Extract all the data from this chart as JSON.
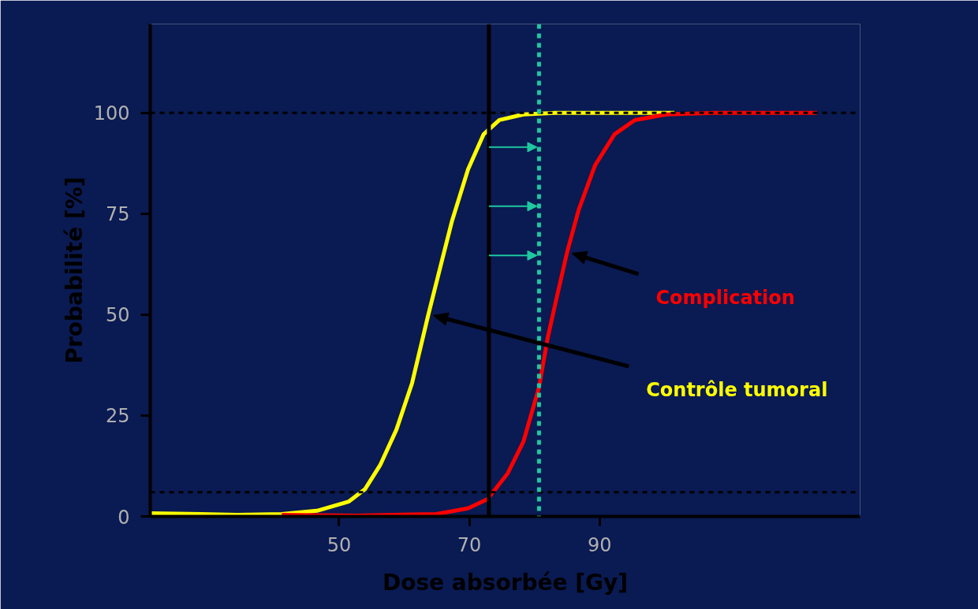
{
  "chart_data": {
    "type": "line",
    "xlabel": "Dose absorbée [Gy]",
    "ylabel": "Probabilité [%]",
    "xlim": [
      21,
      130
    ],
    "ylim": [
      0,
      122
    ],
    "xticks": [
      50,
      70,
      90
    ],
    "yticks": [
      0,
      25,
      50,
      75,
      100
    ],
    "grid": false,
    "legend": false,
    "marker": "none",
    "line_style": "solid",
    "series": [
      {
        "name": "Contrôle tumoral",
        "color": "#ffff00",
        "x": [
          21,
          34.4,
          41.2,
          46.6,
          51.5,
          54,
          56.3,
          58.8,
          61.2,
          63.7,
          65.5,
          67.3,
          69.8,
          72.2,
          74.6,
          78.3,
          83.2,
          101.5
        ],
        "values": [
          0.8,
          0.4,
          0.6,
          1.4,
          3.7,
          6.8,
          12.7,
          21.5,
          33,
          50,
          61.5,
          73,
          86,
          94.7,
          98.2,
          99.6,
          100,
          100
        ]
      },
      {
        "name": "Complication",
        "color": "#ff0000",
        "x": [
          41.2,
          52.7,
          64.9,
          69.8,
          72.8,
          75.9,
          78.3,
          80.7,
          82,
          83.2,
          85,
          86.8,
          89.3,
          92.3,
          95.4,
          100.2,
          107.6,
          123.4
        ],
        "values": [
          0.4,
          0.2,
          0.6,
          2,
          4.3,
          10.7,
          18.5,
          32,
          44,
          52.7,
          65.4,
          76,
          87,
          94.7,
          98.2,
          99.6,
          100,
          100
        ]
      }
    ],
    "ref_lines": [
      {
        "axis": "y",
        "value": 100,
        "color": "#000000",
        "line_style": "dashed"
      },
      {
        "axis": "y",
        "value": 6,
        "color": "#000000",
        "line_style": "dashed"
      },
      {
        "axis": "x",
        "value": 73,
        "color": "#000000",
        "line_style": "solid"
      },
      {
        "axis": "x",
        "value": 80.7,
        "color": "#1ec8a0",
        "line_style": "dashed"
      }
    ]
  }
}
